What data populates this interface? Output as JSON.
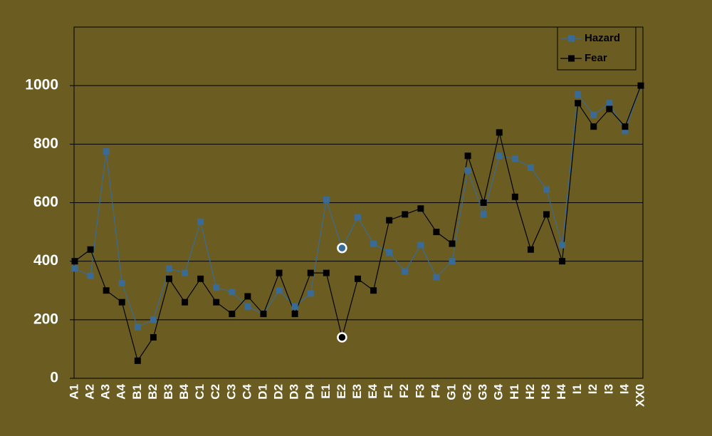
{
  "chart_data": {
    "type": "line",
    "categories": [
      "A1",
      "A2",
      "A3",
      "A4",
      "B1",
      "B2",
      "B3",
      "B4",
      "C1",
      "C2",
      "C3",
      "C4",
      "D1",
      "D2",
      "D3",
      "D4",
      "E1",
      "E2",
      "E3",
      "E4",
      "F1",
      "F2",
      "F3",
      "F4",
      "G1",
      "G2",
      "G3",
      "G4",
      "H1",
      "H2",
      "H3",
      "H4",
      "I1",
      "I2",
      "I3",
      "I4",
      "XX0"
    ],
    "series": [
      {
        "name": "Hazard",
        "color": "#3a6a96",
        "values": [
          375,
          350,
          775,
          325,
          175,
          200,
          375,
          360,
          535,
          310,
          295,
          245,
          220,
          300,
          245,
          290,
          610,
          445,
          550,
          460,
          430,
          365,
          455,
          345,
          400,
          710,
          560,
          760,
          750,
          720,
          645,
          455,
          970,
          900,
          940,
          845,
          1000
        ]
      },
      {
        "name": "Fear",
        "color": "#000000",
        "values": [
          400,
          440,
          300,
          260,
          60,
          140,
          340,
          260,
          340,
          260,
          220,
          280,
          220,
          360,
          220,
          360,
          360,
          140,
          340,
          300,
          540,
          560,
          580,
          500,
          460,
          760,
          600,
          840,
          620,
          440,
          560,
          400,
          940,
          860,
          920,
          860,
          1000
        ]
      }
    ],
    "ylim": [
      0,
      1200
    ],
    "yticks": [
      0,
      200,
      400,
      600,
      800,
      1000
    ],
    "grid": true,
    "legend": "upper right",
    "highlight": "E2"
  }
}
